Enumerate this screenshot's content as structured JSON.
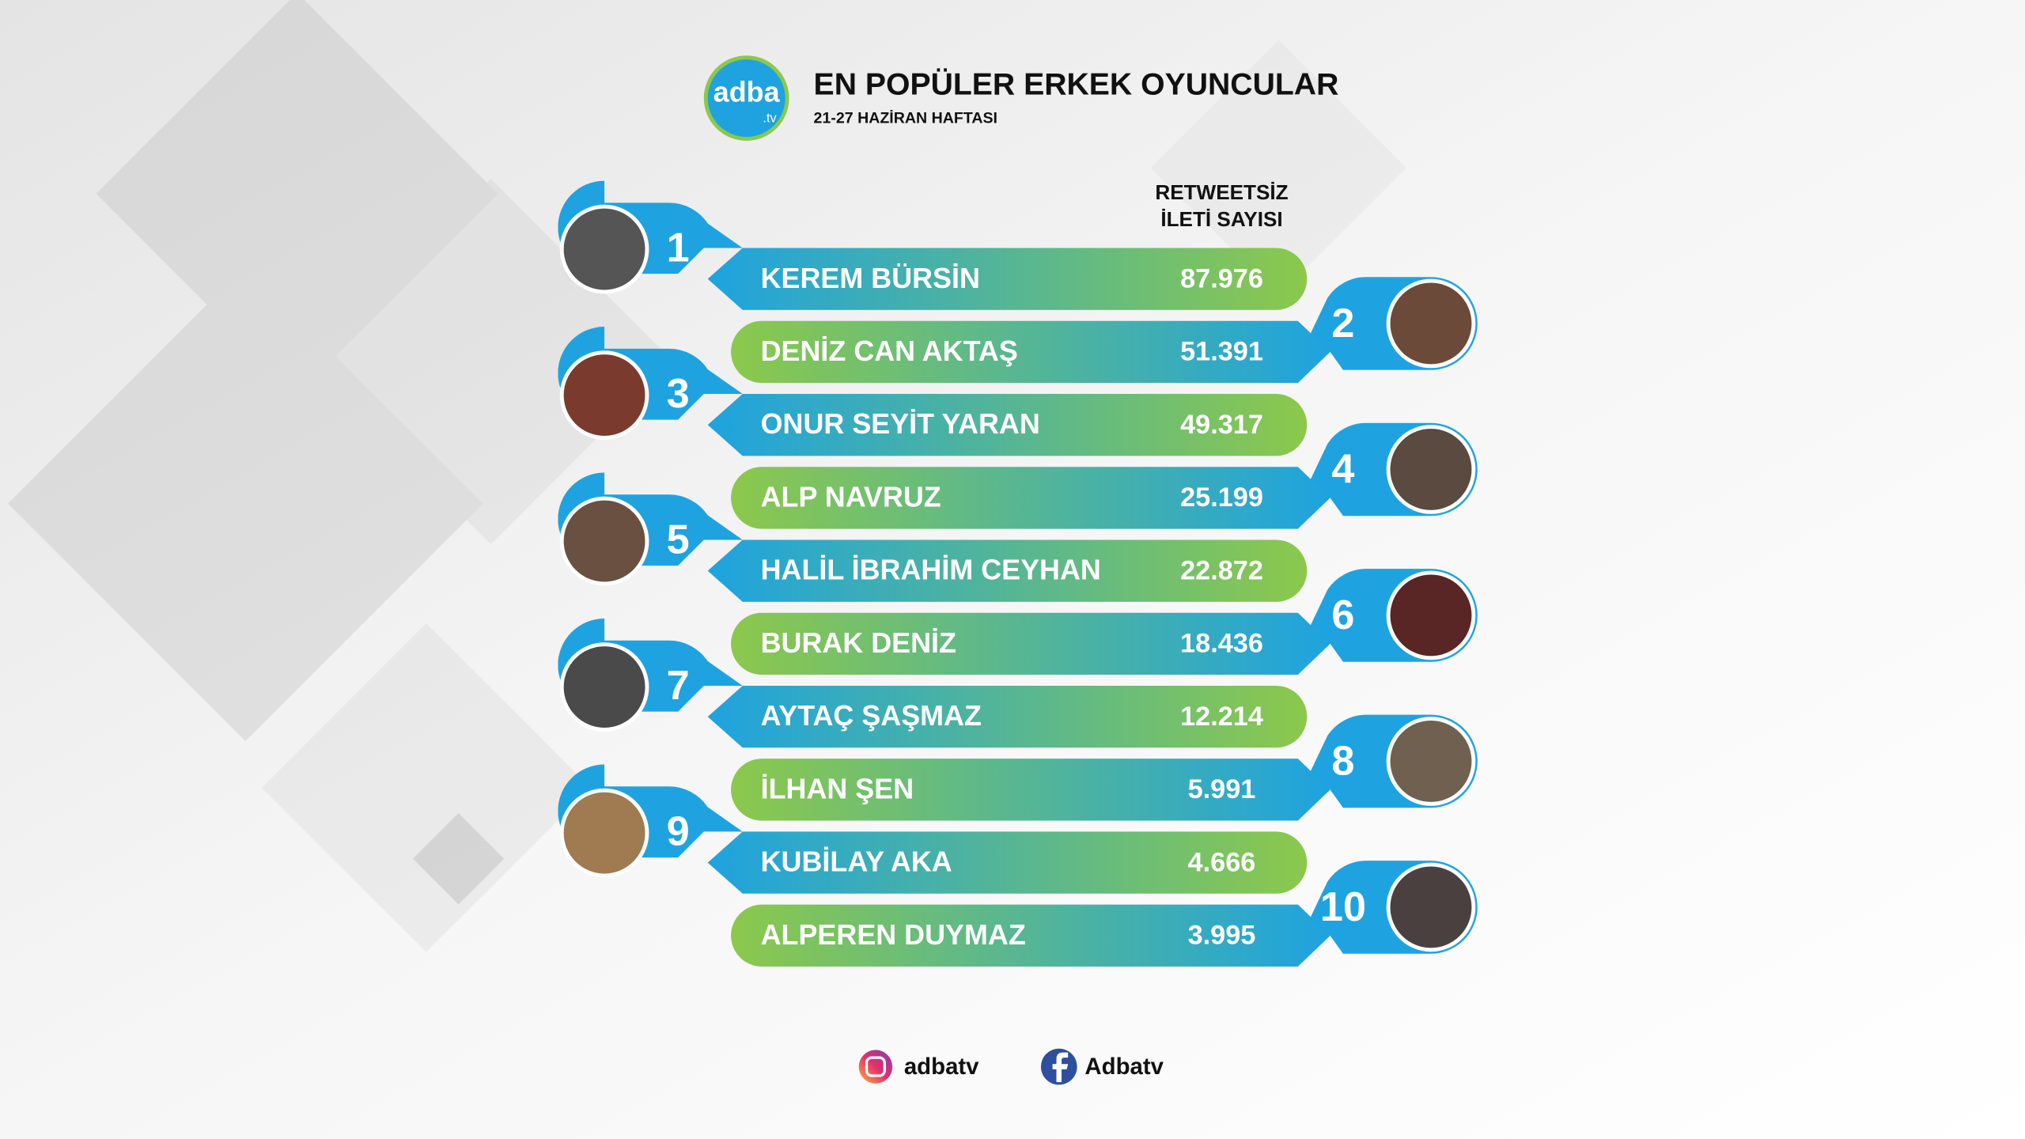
{
  "header": {
    "logo": "adba",
    "logo_sub": ".tv",
    "title": "EN POPÜLER ERKEK OYUNCULAR",
    "subtitle": "21-27 HAZİRAN HAFTASI"
  },
  "column_header": [
    "RETWEETSİZ",
    "İLETİ SAYISI"
  ],
  "rows": [
    {
      "rank": "1",
      "name": "KEREM BÜRSİN",
      "count": "87.976"
    },
    {
      "rank": "2",
      "name": "DENİZ CAN AKTAŞ",
      "count": "51.391"
    },
    {
      "rank": "3",
      "name": "ONUR SEYİT YARAN",
      "count": "49.317"
    },
    {
      "rank": "4",
      "name": "ALP NAVRUZ",
      "count": "25.199"
    },
    {
      "rank": "5",
      "name": "HALİL İBRAHİM CEYHAN",
      "count": "22.872"
    },
    {
      "rank": "6",
      "name": "BURAK DENİZ",
      "count": "18.436"
    },
    {
      "rank": "7",
      "name": "AYTAÇ ŞAŞMAZ",
      "count": "12.214"
    },
    {
      "rank": "8",
      "name": "İLHAN ŞEN",
      "count": "5.991"
    },
    {
      "rank": "9",
      "name": "KUBİLAY AKA",
      "count": "4.666"
    },
    {
      "rank": "10",
      "name": "ALPEREN DUYMAZ",
      "count": "3.995"
    }
  ],
  "footer": {
    "instagram": "adbatv",
    "facebook": "Adbatv"
  }
}
